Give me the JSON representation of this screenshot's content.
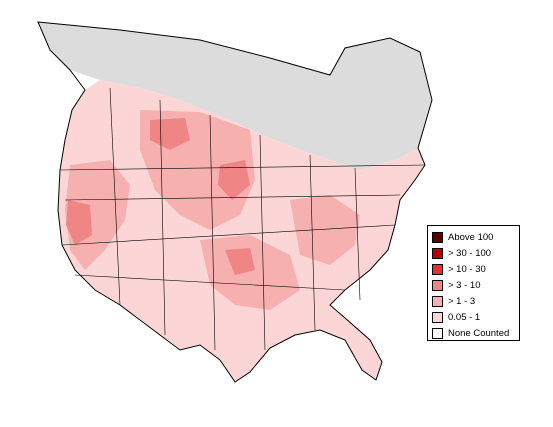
{
  "map": {
    "colors": {
      "ocean": "#ffffff",
      "unsurveyed": "#dcdcdc",
      "boundary": "#000000",
      "level_1": "#fcd6d6",
      "level_2": "#f6b0b0",
      "level_3": "#ef8585",
      "level_4": "#e03333",
      "level_5": "#b30000",
      "level_6": "#5a0000"
    }
  },
  "legend": {
    "items": [
      {
        "label": "Above 100",
        "color": "#5a0000"
      },
      {
        "label": "> 30 - 100",
        "color": "#b30000"
      },
      {
        "label": "> 10 - 30",
        "color": "#e03333"
      },
      {
        "label": "> 3 - 10",
        "color": "#ef8585"
      },
      {
        "label": "> 1 - 3",
        "color": "#f6b0b0"
      },
      {
        "label": "0.05 - 1",
        "color": "#fcd6d6"
      },
      {
        "label": "None Counted",
        "color": "#ffffff"
      }
    ]
  }
}
